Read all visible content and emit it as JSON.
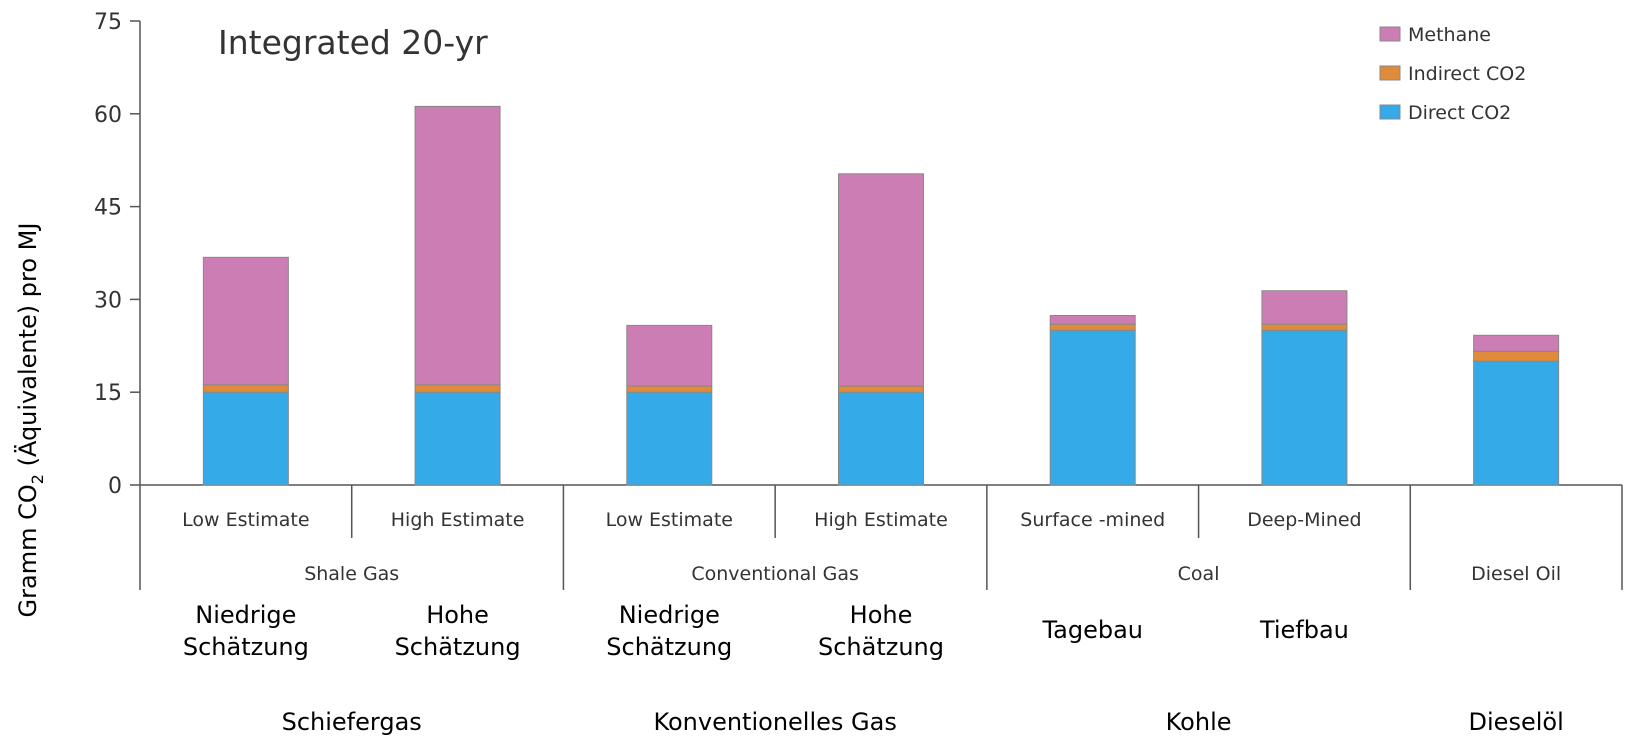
{
  "chart_data": {
    "type": "bar",
    "stacked": true,
    "title": "Integrated 20-yr",
    "ylabel": {
      "prefix": "Gramm CO",
      "sub": "2",
      "suffix": " (Äquivalente) pro MJ"
    },
    "ylim": [
      0,
      75
    ],
    "yticks": [
      "0",
      "15",
      "30",
      "45",
      "60",
      "75"
    ],
    "legend_position": "top-right",
    "categories": [
      {
        "label": "Low Estimate",
        "de": [
          "Niedrige",
          "Schätzung"
        ]
      },
      {
        "label": "High Estimate",
        "de": [
          "Hohe",
          "Schätzung"
        ]
      },
      {
        "label": "Low Estimate",
        "de": [
          "Niedrige",
          "Schätzung"
        ]
      },
      {
        "label": "High Estimate",
        "de": [
          "Hohe",
          "Schätzung"
        ]
      },
      {
        "label": "Surface -mined",
        "de": [
          "Tagebau"
        ]
      },
      {
        "label": "Deep-Mined",
        "de": [
          "Tiefbau"
        ]
      },
      {
        "label": "",
        "de": []
      }
    ],
    "groups": [
      {
        "label": "Shale Gas",
        "de": "Schiefergas",
        "span": 2
      },
      {
        "label": "Conventional Gas",
        "de": "Konventionelles Gas",
        "span": 2
      },
      {
        "label": "Coal",
        "de": "Kohle",
        "span": 2
      },
      {
        "label": "Diesel Oil",
        "de": "Dieselöl",
        "span": 1
      }
    ],
    "series": [
      {
        "name": "Direct CO2",
        "color": "#35aae8",
        "values": [
          15,
          15,
          15,
          15,
          25,
          25,
          20
        ]
      },
      {
        "name": "Indirect CO2",
        "color": "#e08a3c",
        "values": [
          1.2,
          1.2,
          1,
          1,
          1,
          1,
          1.6
        ]
      },
      {
        "name": "Methane",
        "color": "#cc7db4",
        "values": [
          20.6,
          45,
          9.8,
          34.3,
          1.4,
          5.4,
          2.6
        ]
      }
    ],
    "legend_order": [
      "Methane",
      "Indirect CO2",
      "Direct CO2"
    ]
  }
}
